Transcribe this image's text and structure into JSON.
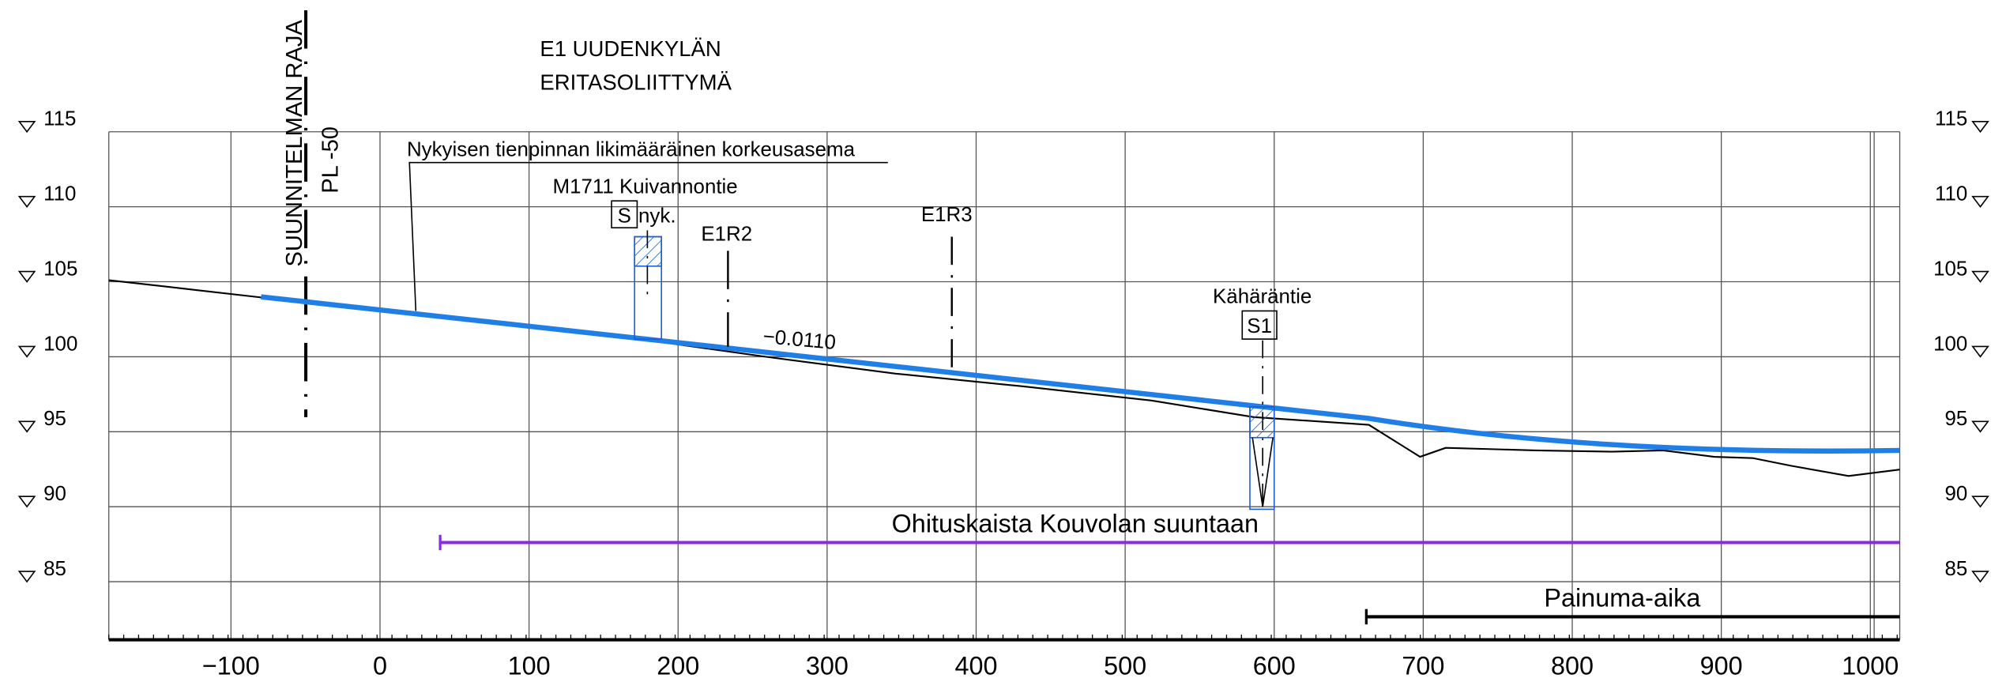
{
  "header": {
    "title": [
      "E1 UUDENKYLÄN",
      "ERITASOLIITTYMÄ"
    ]
  },
  "labels": {
    "boundary": "SUUNNITELMAN RAJA",
    "boundary_station": "PL -50",
    "existing_surface": "Nykyisen tienpinnan likimääräinen korkeusasema",
    "crossing1_name": "M1711 Kuivannontie",
    "crossing1_box": "S",
    "crossing1_suffix": "nyk.",
    "ramp2": "E1R2",
    "ramp3": "E1R3",
    "slope": "−0.0110",
    "crossing2_name": "Kähäräntie",
    "crossing2_box": "S1",
    "passing_lane": "Ohituskaista Kouvolan suuntaan",
    "settlement": "Painuma-aika"
  },
  "elevations": [
    115,
    110,
    105,
    100,
    95,
    90,
    85
  ],
  "xticks": [
    {
      "value": -100,
      "label": "−100"
    },
    0,
    100,
    200,
    300,
    400,
    500,
    600,
    700,
    800,
    900,
    1000
  ]
}
